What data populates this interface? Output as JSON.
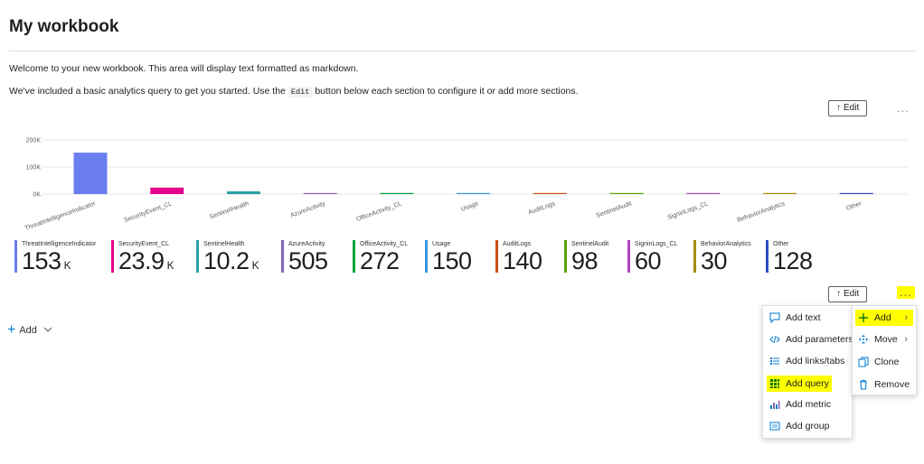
{
  "page": {
    "title": "My workbook",
    "markdown_line1": "Welcome to your new workbook. This area will display text formatted as markdown.",
    "markdown_line2_pre": "We've included a basic analytics query to get you started. Use the",
    "markdown_line2_code": "Edit",
    "markdown_line2_post": "button below each section to configure it or add more sections."
  },
  "toolbar": {
    "edit_label": "Edit",
    "edit_icon": "up-arrow-icon",
    "more_label": "...",
    "add_label": "Add"
  },
  "colors": {
    "accent": "#0078d4",
    "highlight": "#ffff00"
  },
  "chart_data": {
    "type": "bar",
    "title": "",
    "xlabel": "",
    "ylabel": "",
    "ylim": [
      0,
      200000
    ],
    "y_ticks": [
      "0K",
      "100K",
      "200K"
    ],
    "y_tick_values": [
      0,
      100000,
      200000
    ],
    "categories": [
      "ThreatIntelligenceIndicator",
      "SecurityEvent_CL",
      "SentinelHealth",
      "AzureActivity",
      "OfficeActivity_CL",
      "Usage",
      "AuditLogs",
      "SentinelAudit",
      "SigninLogs_CL",
      "BehaviorAnalytics",
      "Other"
    ],
    "values": [
      153000,
      23900,
      10200,
      505,
      272,
      150,
      140,
      98,
      60,
      30,
      128
    ],
    "colors": [
      "#6a7ef0",
      "#e3008c",
      "#2aa0a4",
      "#8764b8",
      "#00a13a",
      "#3a96dd",
      "#ca5010",
      "#57a300",
      "#b146c2",
      "#a78b00",
      "#2e4dbe"
    ],
    "grid": true
  },
  "tiles": [
    {
      "name": "ThreatIntelligenceIndicator",
      "value": "153",
      "unit": "K",
      "color": "#6a7ef0"
    },
    {
      "name": "SecurityEvent_CL",
      "value": "23.9",
      "unit": "K",
      "color": "#e3008c"
    },
    {
      "name": "SentinelHealth",
      "value": "10.2",
      "unit": "K",
      "color": "#2aa0a4"
    },
    {
      "name": "AzureActivity",
      "value": "505",
      "unit": "",
      "color": "#8764b8"
    },
    {
      "name": "OfficeActivity_CL",
      "value": "272",
      "unit": "",
      "color": "#00a13a"
    },
    {
      "name": "Usage",
      "value": "150",
      "unit": "",
      "color": "#3a96dd"
    },
    {
      "name": "AuditLogs",
      "value": "140",
      "unit": "",
      "color": "#ca5010"
    },
    {
      "name": "SentinelAudit",
      "value": "98",
      "unit": "",
      "color": "#57a300"
    },
    {
      "name": "SigninLogs_CL",
      "value": "60",
      "unit": "",
      "color": "#b146c2"
    },
    {
      "name": "BehaviorAnalytics",
      "value": "30",
      "unit": "",
      "color": "#a78b00"
    },
    {
      "name": "Other",
      "value": "128",
      "unit": "",
      "color": "#2e4dbe"
    }
  ],
  "add_menu": {
    "items": [
      {
        "label": "Add text",
        "icon": "comment-icon"
      },
      {
        "label": "Add parameters",
        "icon": "code-icon"
      },
      {
        "label": "Add links/tabs",
        "icon": "list-icon"
      },
      {
        "label": "Add query",
        "icon": "grid-icon"
      },
      {
        "label": "Add metric",
        "icon": "metric-chart-icon"
      },
      {
        "label": "Add group",
        "icon": "group-icon"
      }
    ]
  },
  "context_menu": {
    "items": [
      {
        "label": "Add",
        "icon": "plus-icon"
      },
      {
        "label": "Move",
        "icon": "move-icon"
      },
      {
        "label": "Clone",
        "icon": "clone-icon"
      },
      {
        "label": "Remove",
        "icon": "trash-icon"
      }
    ]
  }
}
